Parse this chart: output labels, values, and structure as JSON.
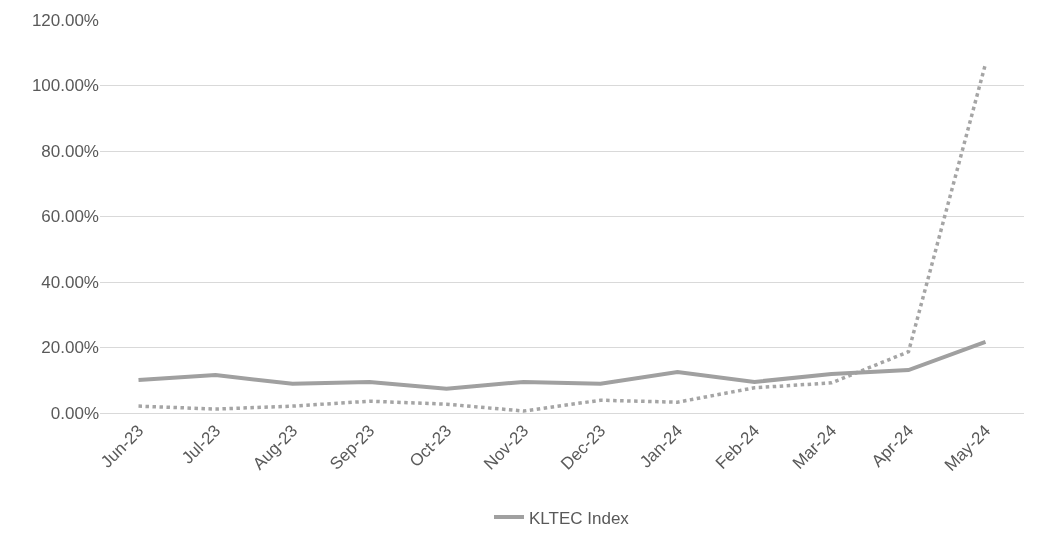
{
  "chart_data": {
    "type": "line",
    "categories": [
      "Jun-23",
      "Jul-23",
      "Aug-23",
      "Sep-23",
      "Oct-23",
      "Nov-23",
      "Dec-23",
      "Jan-24",
      "Feb-24",
      "Mar-24",
      "Apr-24",
      "May-24"
    ],
    "series": [
      {
        "color": "#a5a5a5",
        "line_style": "dotted",
        "values": [
          2.1,
          1.2,
          2.1,
          3.6,
          2.7,
          0.6,
          3.9,
          3.3,
          7.7,
          9.2,
          18.7,
          106.6
        ]
      },
      {
        "name": "KLTEC Index",
        "color": "#a0a0a0",
        "line_style": "solid",
        "values": [
          10.1,
          11.6,
          8.9,
          9.5,
          7.4,
          9.5,
          8.9,
          12.5,
          9.5,
          11.9,
          13.1,
          21.7
        ]
      }
    ],
    "ylim": [
      0,
      120
    ],
    "yticks": [
      {
        "value": 0,
        "label": "0.00%"
      },
      {
        "value": 20,
        "label": "20.00%"
      },
      {
        "value": 40,
        "label": "40.00%"
      },
      {
        "value": 60,
        "label": "60.00%"
      },
      {
        "value": 80,
        "label": "80.00%"
      },
      {
        "value": 100,
        "label": "100.00%"
      },
      {
        "value": 120,
        "label": "120.00%"
      }
    ],
    "grid": "y",
    "legend": "bottom",
    "marker": "none"
  }
}
